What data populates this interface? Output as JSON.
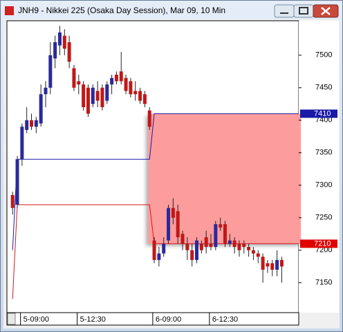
{
  "window_title": "JNH9 - Nikkei 225 (Osaka Day Session), Mar 09, 10 Min",
  "chart_data": {
    "type": "candlestick",
    "up_color": "#2a2a9a",
    "down_color": "#c01818",
    "open": [
      7285,
      7270,
      7340,
      7385,
      7400,
      7390,
      7395,
      7440,
      7450,
      7495,
      7515,
      7530,
      7520,
      7480,
      7460,
      7455,
      7450,
      7425,
      7445,
      7450,
      7430,
      7455,
      7470,
      7475,
      7465,
      7460,
      7445,
      7445,
      7440,
      7415,
      7215,
      7185,
      7195,
      7215,
      7265,
      7260,
      7225,
      7210,
      7200,
      7185,
      7210,
      7220,
      7210,
      7205,
      7240,
      7240,
      7210,
      7215,
      7210,
      7210,
      7205,
      7200,
      7195,
      7190,
      7180,
      7180,
      7170,
      7185
    ],
    "high": [
      7290,
      7345,
      7395,
      7420,
      7410,
      7405,
      7455,
      7460,
      7520,
      7530,
      7545,
      7540,
      7530,
      7485,
      7470,
      7460,
      7455,
      7455,
      7460,
      7455,
      7460,
      7470,
      7475,
      7505,
      7470,
      7465,
      7460,
      7450,
      7445,
      7420,
      7220,
      7205,
      7220,
      7270,
      7280,
      7270,
      7230,
      7220,
      7210,
      7220,
      7215,
      7230,
      7225,
      7245,
      7250,
      7245,
      7225,
      7220,
      7215,
      7215,
      7210,
      7205,
      7200,
      7195,
      7185,
      7185,
      7200,
      7190
    ],
    "low": [
      7255,
      7265,
      7330,
      7380,
      7385,
      7380,
      7390,
      7420,
      7440,
      7480,
      7500,
      7500,
      7480,
      7445,
      7440,
      7415,
      7405,
      7420,
      7420,
      7415,
      7425,
      7440,
      7455,
      7455,
      7440,
      7435,
      7430,
      7425,
      7420,
      7385,
      7180,
      7175,
      7190,
      7210,
      7240,
      7210,
      7200,
      7185,
      7175,
      7180,
      7195,
      7195,
      7200,
      7200,
      7230,
      7205,
      7205,
      7195,
      7190,
      7195,
      7190,
      7185,
      7180,
      7150,
      7165,
      7160,
      7160,
      7150
    ],
    "close": [
      7265,
      7340,
      7390,
      7400,
      7390,
      7400,
      7440,
      7450,
      7500,
      7520,
      7535,
      7510,
      7490,
      7450,
      7455,
      7420,
      7410,
      7450,
      7430,
      7420,
      7455,
      7465,
      7460,
      7460,
      7445,
      7440,
      7440,
      7430,
      7425,
      7390,
      7185,
      7195,
      7210,
      7265,
      7250,
      7220,
      7210,
      7200,
      7185,
      7215,
      7200,
      7205,
      7205,
      7240,
      7235,
      7210,
      7215,
      7205,
      7200,
      7205,
      7200,
      7195,
      7190,
      7170,
      7175,
      7170,
      7185,
      7175
    ],
    "xlim": [
      -1.2,
      60.6
    ],
    "xticks": [
      {
        "value": 3,
        "label": "5-09:00"
      },
      {
        "value": 15,
        "label": "5-12:30"
      },
      {
        "value": 31,
        "label": "6-09:00"
      },
      {
        "value": 43,
        "label": "6-12:30"
      }
    ],
    "ylim": [
      7104,
      7553
    ],
    "yticks": [
      7150,
      7200,
      7250,
      7300,
      7350,
      7400,
      7450,
      7500
    ],
    "lines": [
      {
        "color": "#1a1aa8",
        "x": [
          0,
          1,
          29,
          30,
          60.6
        ],
        "values": [
          7200,
          7340,
          7340,
          7410,
          7410
        ]
      },
      {
        "color": "#d01818",
        "x": [
          0,
          1,
          29,
          30,
          60.6
        ],
        "values": [
          7125,
          7270,
          7270,
          7210,
          7210
        ]
      }
    ],
    "zone": {
      "color": "#ff9a9a",
      "x": [
        28.7,
        60.6
      ],
      "values": [
        7210,
        7410
      ]
    },
    "price_tags": [
      {
        "value": 7410,
        "color": "#1a1aa8"
      },
      {
        "value": 7210,
        "color": "#e00000"
      }
    ]
  }
}
